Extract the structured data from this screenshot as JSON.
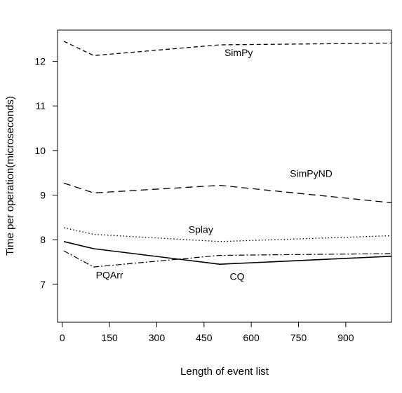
{
  "chart_data": {
    "type": "line",
    "xlabel": "Length of event list",
    "ylabel": "Time per operation(microseconds)",
    "xlim": [
      -15,
      1045
    ],
    "ylim": [
      6.15,
      12.7
    ],
    "xticks": [
      0,
      150,
      300,
      450,
      600,
      750,
      900
    ],
    "yticks": [
      7,
      8,
      9,
      10,
      11,
      12
    ],
    "grid": false,
    "legend": "none",
    "series": [
      {
        "name": "SimPy",
        "dash": "6,4",
        "stroke_width": 1.3,
        "label_x": 560,
        "label_y": 12.12,
        "x": [
          5,
          100,
          500,
          1045
        ],
        "y": [
          12.45,
          12.13,
          12.37,
          12.41
        ]
      },
      {
        "name": "SimPyND",
        "dash": "10,6",
        "stroke_width": 1.3,
        "label_x": 790,
        "label_y": 9.41,
        "x": [
          5,
          100,
          500,
          1045
        ],
        "y": [
          9.27,
          9.05,
          9.22,
          8.83
        ]
      },
      {
        "name": "Splay",
        "dash": "1.5,3",
        "stroke_width": 1.3,
        "label_x": 440,
        "label_y": 8.15,
        "x": [
          5,
          100,
          500,
          1045
        ],
        "y": [
          8.27,
          8.12,
          7.96,
          8.09
        ]
      },
      {
        "name": "PQArr",
        "dash": "8,3,2,3",
        "stroke_width": 1.2,
        "label_x": 150,
        "label_y": 7.13,
        "x": [
          5,
          100,
          500,
          1045
        ],
        "y": [
          7.75,
          7.39,
          7.65,
          7.69
        ]
      },
      {
        "name": "CQ",
        "dash": "",
        "stroke_width": 1.6,
        "label_x": 555,
        "label_y": 7.1,
        "x": [
          5,
          100,
          500,
          1045
        ],
        "y": [
          7.96,
          7.8,
          7.45,
          7.63
        ]
      }
    ]
  }
}
